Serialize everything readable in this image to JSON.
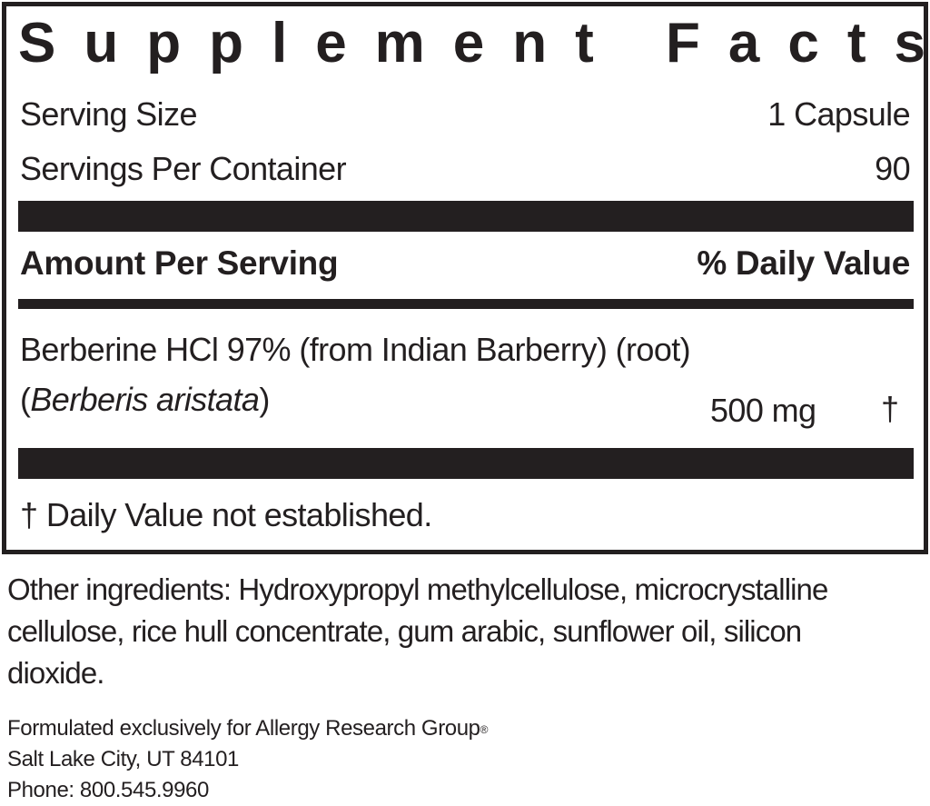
{
  "panel": {
    "title": "Supplement Facts",
    "serving_size_label": "Serving Size",
    "serving_size_value": "1 Capsule",
    "servings_per_container_label": "Servings Per Container",
    "servings_per_container_value": "90",
    "amount_header": "Amount Per Serving",
    "dv_header": "% Daily Value",
    "ingredients": [
      {
        "name_line1": "Berberine HCl 97% (from Indian Barberry) (root)",
        "latin_open": "(",
        "latin": "Berberis aristata",
        "latin_close": ")",
        "amount": "500 mg",
        "dv": "†"
      }
    ],
    "footnote": "† Daily Value not established."
  },
  "other_ingredients": [
    "Other ingredients: Hydroxypropyl methylcellulose, microcrystalline",
    "cellulose, rice hull concentrate, gum arabic, sunflower oil, silicon",
    "dioxide."
  ],
  "company": {
    "line1": "Formulated exclusively for Allergy Research Group",
    "registered": "®",
    "line2": "Salt Lake City, UT 84101",
    "line3": "Phone: 800.545.9960"
  }
}
